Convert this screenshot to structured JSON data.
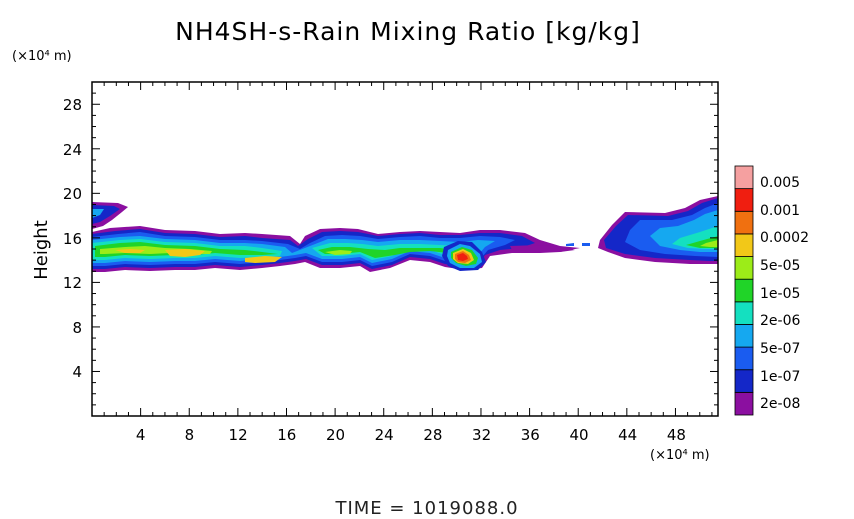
{
  "chart_data": {
    "type": "heatmap",
    "title": "NH4SH-s-Rain Mixing Ratio [kg/kg]",
    "ylabel": "Height",
    "x_unit": "(×10⁴ m)",
    "y_unit": "(×10⁴ m)",
    "xlim": [
      0,
      51.5
    ],
    "ylim": [
      0,
      30
    ],
    "x_ticks": [
      "4",
      "8",
      "12",
      "16",
      "20",
      "24",
      "28",
      "32",
      "36",
      "40",
      "44",
      "48"
    ],
    "y_ticks": [
      "4",
      "8",
      "12",
      "16",
      "20",
      "24",
      "28"
    ],
    "footer": "TIME = 1019088.0",
    "colorbar": {
      "levels": [
        "0.005",
        "0.001",
        "0.0002",
        "5e-05",
        "1e-05",
        "2e-06",
        "5e-07",
        "1e-07",
        "2e-08"
      ],
      "colors": [
        "#8b0fa0",
        "#1427c8",
        "#1a5cf0",
        "#15a8f0",
        "#14e0c0",
        "#20d428",
        "#9cec18",
        "#f2c818",
        "#f07010",
        "#f01e10",
        "#f5a0a0"
      ]
    },
    "features": [
      {
        "name": "left-edge-upper",
        "x": [
          0,
          3.2
        ],
        "y": [
          16.5,
          19.2
        ],
        "level": "1e-07"
      },
      {
        "name": "main-cloud-band",
        "x": [
          0,
          51.5
        ],
        "y": [
          13.2,
          16.8
        ],
        "level": "2e-08"
      },
      {
        "name": "core-left",
        "x": [
          2,
          11
        ],
        "y": [
          13.5,
          15.5
        ],
        "level": "0.0002"
      },
      {
        "name": "core-mid",
        "x": [
          13,
          16
        ],
        "y": [
          13.8,
          14.5
        ],
        "level": "0.0002"
      },
      {
        "name": "core-peak",
        "x": [
          29.5,
          31
        ],
        "y": [
          14,
          15
        ],
        "level": "0.001"
      },
      {
        "name": "right-edge-upper",
        "x": [
          43,
          51.5
        ],
        "y": [
          15,
          19.5
        ],
        "level": "1e-07"
      }
    ]
  }
}
